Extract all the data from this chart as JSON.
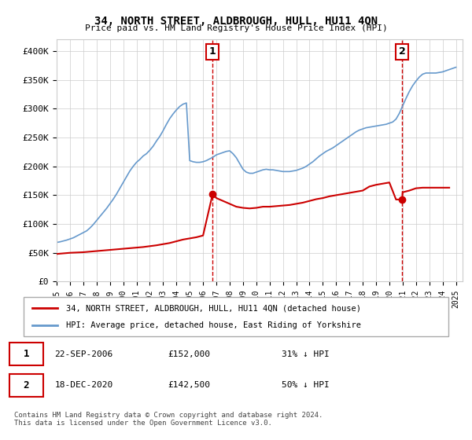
{
  "title": "34, NORTH STREET, ALDBROUGH, HULL, HU11 4QN",
  "subtitle": "Price paid vs. HM Land Registry's House Price Index (HPI)",
  "ylabel_ticks": [
    "£0",
    "£50K",
    "£100K",
    "£150K",
    "£200K",
    "£250K",
    "£300K",
    "£350K",
    "£400K"
  ],
  "ytick_values": [
    0,
    50000,
    100000,
    150000,
    200000,
    250000,
    300000,
    350000,
    400000
  ],
  "ylim": [
    0,
    420000
  ],
  "xlim_start": 1995.0,
  "xlim_end": 2025.5,
  "x_years": [
    1995,
    1996,
    1997,
    1998,
    1999,
    2000,
    2001,
    2002,
    2003,
    2004,
    2005,
    2006,
    2007,
    2008,
    2009,
    2010,
    2011,
    2012,
    2013,
    2014,
    2015,
    2016,
    2017,
    2018,
    2019,
    2020,
    2021,
    2022,
    2023,
    2024,
    2025
  ],
  "hpi_x": [
    1995.0,
    1995.25,
    1995.5,
    1995.75,
    1996.0,
    1996.25,
    1996.5,
    1996.75,
    1997.0,
    1997.25,
    1997.5,
    1997.75,
    1998.0,
    1998.25,
    1998.5,
    1998.75,
    1999.0,
    1999.25,
    1999.5,
    1999.75,
    2000.0,
    2000.25,
    2000.5,
    2000.75,
    2001.0,
    2001.25,
    2001.5,
    2001.75,
    2002.0,
    2002.25,
    2002.5,
    2002.75,
    2003.0,
    2003.25,
    2003.5,
    2003.75,
    2004.0,
    2004.25,
    2004.5,
    2004.75,
    2005.0,
    2005.25,
    2005.5,
    2005.75,
    2006.0,
    2006.25,
    2006.5,
    2006.75,
    2007.0,
    2007.25,
    2007.5,
    2007.75,
    2008.0,
    2008.25,
    2008.5,
    2008.75,
    2009.0,
    2009.25,
    2009.5,
    2009.75,
    2010.0,
    2010.25,
    2010.5,
    2010.75,
    2011.0,
    2011.25,
    2011.5,
    2011.75,
    2012.0,
    2012.25,
    2012.5,
    2012.75,
    2013.0,
    2013.25,
    2013.5,
    2013.75,
    2014.0,
    2014.25,
    2014.5,
    2014.75,
    2015.0,
    2015.25,
    2015.5,
    2015.75,
    2016.0,
    2016.25,
    2016.5,
    2016.75,
    2017.0,
    2017.25,
    2017.5,
    2017.75,
    2018.0,
    2018.25,
    2018.5,
    2018.75,
    2019.0,
    2019.25,
    2019.5,
    2019.75,
    2020.0,
    2020.25,
    2020.5,
    2020.75,
    2021.0,
    2021.25,
    2021.5,
    2021.75,
    2022.0,
    2022.25,
    2022.5,
    2022.75,
    2023.0,
    2023.25,
    2023.5,
    2023.75,
    2024.0,
    2024.25,
    2024.5,
    2024.75,
    2025.0
  ],
  "hpi_y": [
    68000,
    69000,
    70500,
    72000,
    74000,
    76000,
    79000,
    82000,
    85000,
    88000,
    93000,
    99000,
    106000,
    113000,
    120000,
    127000,
    135000,
    143000,
    152000,
    162000,
    172000,
    182000,
    192000,
    200000,
    207000,
    212000,
    218000,
    222000,
    228000,
    235000,
    244000,
    252000,
    262000,
    273000,
    283000,
    291000,
    298000,
    304000,
    308000,
    310000,
    210000,
    208000,
    207000,
    207000,
    208000,
    210000,
    213000,
    216000,
    220000,
    222000,
    224000,
    226000,
    227000,
    222000,
    215000,
    205000,
    195000,
    190000,
    188000,
    188000,
    190000,
    192000,
    194000,
    195000,
    194000,
    194000,
    193000,
    192000,
    191000,
    191000,
    191000,
    192000,
    193000,
    195000,
    197000,
    200000,
    204000,
    208000,
    213000,
    218000,
    222000,
    226000,
    229000,
    232000,
    236000,
    240000,
    244000,
    248000,
    252000,
    256000,
    260000,
    263000,
    265000,
    267000,
    268000,
    269000,
    270000,
    271000,
    272000,
    273000,
    275000,
    277000,
    282000,
    292000,
    305000,
    318000,
    330000,
    340000,
    348000,
    355000,
    360000,
    362000,
    362000,
    362000,
    362000,
    363000,
    364000,
    366000,
    368000,
    370000,
    372000
  ],
  "red_x": [
    1995.0,
    1995.5,
    1996.0,
    1996.5,
    1997.0,
    1997.5,
    1998.0,
    1998.5,
    1999.0,
    1999.5,
    2000.0,
    2000.5,
    2001.0,
    2001.5,
    2002.0,
    2002.5,
    2003.0,
    2003.5,
    2004.0,
    2004.5,
    2005.0,
    2005.5,
    2006.0,
    2006.5,
    2006.72,
    2007.0,
    2007.5,
    2008.0,
    2008.5,
    2009.0,
    2009.5,
    2010.0,
    2010.5,
    2011.0,
    2011.5,
    2012.0,
    2012.5,
    2013.0,
    2013.5,
    2014.0,
    2014.5,
    2015.0,
    2015.5,
    2016.0,
    2016.5,
    2017.0,
    2017.5,
    2018.0,
    2018.5,
    2019.0,
    2019.5,
    2020.0,
    2020.5,
    2020.96,
    2021.0,
    2021.5,
    2022.0,
    2022.5,
    2023.0,
    2023.5,
    2024.0,
    2024.5
  ],
  "red_y": [
    48000,
    49000,
    50000,
    50500,
    51000,
    52000,
    53000,
    54000,
    55000,
    56000,
    57000,
    58000,
    59000,
    60000,
    61500,
    63000,
    65000,
    67000,
    70000,
    73000,
    75000,
    77000,
    80000,
    130000,
    152000,
    145000,
    140000,
    135000,
    130000,
    128000,
    127000,
    128000,
    130000,
    130000,
    131000,
    132000,
    133000,
    135000,
    137000,
    140000,
    143000,
    145000,
    148000,
    150000,
    152000,
    154000,
    156000,
    158000,
    165000,
    168000,
    170000,
    172000,
    142500,
    142500,
    155000,
    158000,
    162000,
    163000,
    163000,
    163000,
    163000,
    163000
  ],
  "transaction1_x": 2006.72,
  "transaction1_y": 152000,
  "transaction1_label": "1",
  "transaction2_x": 2020.96,
  "transaction2_y": 142500,
  "transaction2_label": "2",
  "vline1_x": 2006.72,
  "vline2_x": 2020.96,
  "legend_line1": "34, NORTH STREET, ALDBROUGH, HULL, HU11 4QN (detached house)",
  "legend_line2": "HPI: Average price, detached house, East Riding of Yorkshire",
  "table_rows": [
    {
      "num": "1",
      "date": "22-SEP-2006",
      "price": "£152,000",
      "hpi": "31% ↓ HPI"
    },
    {
      "num": "2",
      "date": "18-DEC-2020",
      "price": "£142,500",
      "hpi": "50% ↓ HPI"
    }
  ],
  "footer": "Contains HM Land Registry data © Crown copyright and database right 2024.\nThis data is licensed under the Open Government Licence v3.0.",
  "red_color": "#cc0000",
  "blue_color": "#6699cc",
  "vline_color": "#cc0000",
  "grid_color": "#cccccc",
  "background_color": "#ffffff"
}
